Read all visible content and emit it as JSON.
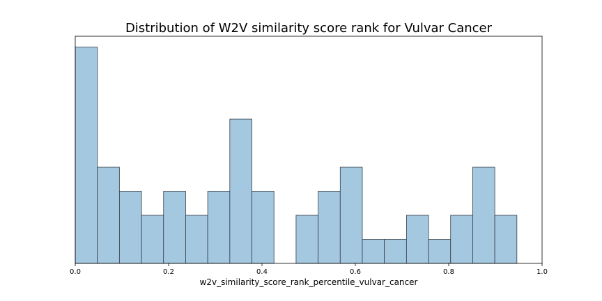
{
  "chart_data": {
    "type": "bar",
    "title": "Distribution of W2V similarity score rank for Vulvar Cancer",
    "xlabel": "w2v_similarity_score_rank_percentile_vulvar_cancer",
    "ylabel": "",
    "xlim": [
      0.0,
      1.0
    ],
    "ylim": [
      0,
      9.45
    ],
    "x_ticks": [
      "0.0",
      "0.2",
      "0.4",
      "0.6",
      "0.8",
      "1.0"
    ],
    "y_axis_visible": false,
    "grid": false,
    "bin_edges": [
      0.0,
      0.0473,
      0.0946,
      0.1419,
      0.1892,
      0.2365,
      0.2838,
      0.3311,
      0.3784,
      0.4257,
      0.473,
      0.5203,
      0.5676,
      0.6149,
      0.6622,
      0.7095,
      0.7568,
      0.8041,
      0.8514,
      0.8987,
      0.946
    ],
    "values": [
      9,
      4,
      3,
      2,
      3,
      2,
      3,
      6,
      3,
      0,
      2,
      3,
      4,
      1,
      1,
      2,
      1,
      2,
      4,
      2
    ],
    "bar_color": "#a5c8e1",
    "edge_color": "#2f3b45"
  }
}
